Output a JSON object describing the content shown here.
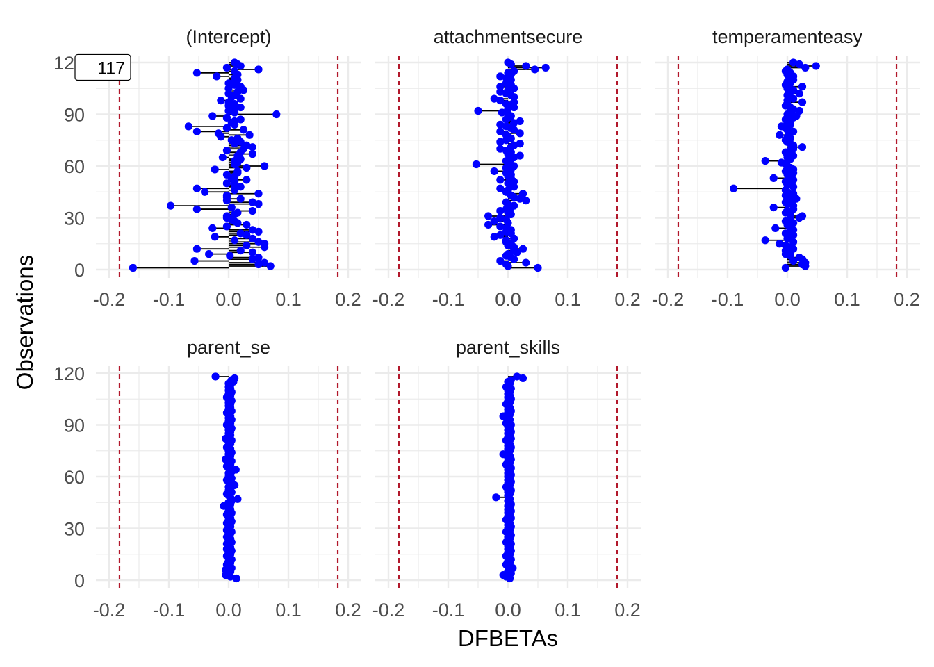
{
  "chart_data": {
    "type": "scatter",
    "xlabel": "DFBETAs",
    "ylabel": "Observations",
    "xlim": [
      -0.2,
      0.2
    ],
    "ylim": [
      0,
      120
    ],
    "x_ticks": [
      -0.2,
      -0.1,
      0.0,
      0.1,
      0.2
    ],
    "x_tick_labels": [
      "-0.2",
      "-0.1",
      "0.0",
      "0.1",
      "0.2"
    ],
    "y_ticks": [
      0,
      30,
      60,
      90,
      120
    ],
    "y_tick_labels": [
      "0",
      "30",
      "60",
      "90",
      "120"
    ],
    "threshold": 0.1826,
    "colors": {
      "point": "#0000ff",
      "segment": "#000000",
      "threshold": "#b2182b",
      "grid": "#ebebeb"
    },
    "callout": {
      "label": "117",
      "panel": "(Intercept)",
      "observation": 117
    },
    "panels": [
      {
        "title": "(Intercept)",
        "values": [
          -0.16,
          0.07,
          0.05,
          0.06,
          -0.057,
          0.04,
          0.05,
          0.002,
          -0.033,
          0.04,
          0.02,
          -0.053,
          0.06,
          0.03,
          0.06,
          0.05,
          0.01,
          0.04,
          -0.023,
          0.03,
          0.02,
          0.05,
          0.04,
          -0.027,
          -0.003,
          0.03,
          0.015,
          0.01,
          0.005,
          -0.003,
          -0.003,
          0.01,
          0.015,
          0.04,
          -0.053,
          0.005,
          -0.097,
          0.05,
          0.04,
          -0.003,
          0.02,
          -0.003,
          -0.003,
          0.05,
          -0.04,
          0.01,
          -0.053,
          0.02,
          0.01,
          -0.003,
          0.01,
          0.03,
          0.005,
          0.01,
          -0.003,
          0.015,
          0.015,
          -0.023,
          0.03,
          0.06,
          0.01,
          0.015,
          0.01,
          0.02,
          -0.01,
          0.015,
          0.04,
          0.02,
          -0.003,
          0.025,
          0.04,
          0.03,
          0.01,
          0.02,
          0.005,
          0.015,
          -0.013,
          0.035,
          -0.017,
          -0.053,
          0.025,
          -0.003,
          -0.067,
          0.01,
          0.005,
          0.01,
          0.02,
          -0.003,
          -0.027,
          0.08,
          0.01,
          0.0,
          0.01,
          0.02,
          0.0,
          0.01,
          0.0,
          -0.013,
          0.02,
          0.005,
          0.01,
          0.0,
          0.015,
          0.025,
          0.0,
          0.02,
          0.01,
          0.0,
          0.01,
          0.015,
          0.01,
          -0.02,
          0.015,
          -0.053,
          0.01,
          0.05,
          -0.003,
          0.02,
          0.015,
          0.01
        ]
      },
      {
        "title": "attachmentsecure",
        "values": [
          0.05,
          0.0,
          -0.003,
          0.03,
          -0.013,
          0.01,
          0.005,
          -0.003,
          0.0,
          0.015,
          0.01,
          0.025,
          0.01,
          0.0,
          0.005,
          -0.003,
          -0.003,
          0.01,
          -0.023,
          -0.013,
          0.005,
          -0.003,
          0.005,
          -0.003,
          -0.013,
          -0.033,
          0.0,
          -0.023,
          -0.003,
          -0.013,
          -0.033,
          0.005,
          0.0,
          -0.013,
          -0.003,
          0.005,
          0.01,
          0.0,
          -0.003,
          0.03,
          0.02,
          0.01,
          0.005,
          0.025,
          -0.003,
          0.0,
          -0.013,
          0.01,
          0.005,
          0.0,
          0.01,
          -0.013,
          0.005,
          0.0,
          0.005,
          -0.003,
          -0.023,
          0.005,
          -0.003,
          0.01,
          -0.053,
          0.0,
          -0.003,
          0.005,
          0.01,
          0.02,
          0.0,
          0.005,
          -0.003,
          -0.013,
          0.005,
          0.01,
          0.02,
          -0.013,
          -0.003,
          0.005,
          0.0,
          -0.003,
          0.02,
          -0.013,
          0.01,
          0.005,
          -0.003,
          -0.013,
          0.01,
          0.02,
          -0.003,
          0.0,
          0.005,
          0.0,
          -0.01,
          -0.05,
          0.0,
          0.01,
          0.005,
          -0.003,
          0.01,
          -0.013,
          -0.023,
          0.01,
          0.005,
          -0.003,
          -0.013,
          0.0,
          0.01,
          -0.013,
          0.005,
          -0.003,
          0.0,
          0.005,
          -0.003,
          -0.013,
          0.005,
          0.0,
          0.01,
          0.045,
          0.063,
          0.03,
          0.005,
          0.0
        ]
      },
      {
        "title": "temperamenteasy",
        "values": [
          -0.003,
          0.03,
          0.025,
          0.03,
          0.01,
          0.025,
          0.02,
          0.005,
          -0.003,
          0.005,
          -0.003,
          0.01,
          0.005,
          -0.003,
          -0.013,
          0.01,
          -0.037,
          0.0,
          0.005,
          0.01,
          -0.003,
          0.005,
          0.01,
          -0.02,
          0.005,
          0.0,
          0.01,
          -0.003,
          0.005,
          0.02,
          0.025,
          0.005,
          -0.003,
          0.0,
          0.01,
          -0.023,
          0.01,
          0.0,
          -0.003,
          0.005,
          0.015,
          0.005,
          -0.003,
          0.01,
          0.0,
          -0.003,
          -0.09,
          0.01,
          0.0,
          0.005,
          -0.003,
          0.01,
          -0.023,
          0.005,
          0.0,
          0.01,
          -0.003,
          0.01,
          0.005,
          0.0,
          -0.003,
          -0.01,
          -0.037,
          0.005,
          0.0,
          0.01,
          0.0,
          -0.003,
          0.005,
          0.01,
          0.025,
          0.01,
          0.005,
          0.0,
          -0.003,
          0.005,
          0.0,
          -0.013,
          0.005,
          0.01,
          0.0,
          -0.003,
          -0.01,
          0.005,
          0.0,
          0.005,
          -0.003,
          0.01,
          0.015,
          0.0,
          0.005,
          0.02,
          0.01,
          0.005,
          -0.003,
          0.0,
          0.025,
          0.0,
          0.01,
          0.005,
          0.0,
          0.02,
          0.005,
          0.01,
          0.0,
          0.025,
          -0.003,
          0.005,
          0.0,
          0.01,
          0.005,
          0.01,
          0.0,
          0.005,
          -0.003,
          0.0,
          0.03,
          0.048,
          0.02,
          0.01
        ]
      },
      {
        "title": "parent_se",
        "values": [
          0.013,
          0.003,
          -0.005,
          0.0,
          0.003,
          -0.005,
          0.005,
          0.0,
          -0.003,
          0.003,
          0.0,
          0.005,
          0.0,
          -0.003,
          0.003,
          0.0,
          0.005,
          -0.003,
          0.003,
          0.0,
          -0.003,
          0.005,
          0.0,
          0.003,
          -0.003,
          0.0,
          0.003,
          0.005,
          -0.003,
          0.0,
          0.003,
          0.0,
          -0.003,
          0.005,
          0.0,
          0.003,
          0.0,
          -0.003,
          0.005,
          0.0,
          0.003,
          0.0,
          -0.008,
          0.003,
          0.0,
          0.005,
          0.015,
          0.003,
          0.0,
          -0.003,
          0.005,
          0.0,
          0.003,
          0.0,
          0.01,
          0.003,
          0.0,
          -0.003,
          0.005,
          0.0,
          0.003,
          0.0,
          0.005,
          0.012,
          0.0,
          -0.003,
          0.003,
          0.0,
          0.005,
          -0.005,
          0.0,
          0.003,
          0.0,
          0.005,
          0.0,
          0.003,
          -0.003,
          0.0,
          0.003,
          0.0,
          0.005,
          -0.005,
          0.0,
          0.003,
          0.0,
          0.003,
          0.0,
          0.005,
          0.0,
          -0.003,
          0.003,
          0.0,
          0.005,
          0.0,
          0.003,
          0.0,
          -0.003,
          0.005,
          0.0,
          0.003,
          0.0,
          0.003,
          0.0,
          0.005,
          0.0,
          -0.003,
          0.003,
          0.0,
          0.005,
          0.0,
          0.003,
          0.0,
          0.003,
          0.0,
          0.008,
          0.005,
          0.01,
          -0.022
        ]
      },
      {
        "title": "parent_skills",
        "values": [
          0.003,
          -0.003,
          -0.008,
          0.005,
          0.0,
          0.003,
          0.008,
          0.0,
          -0.003,
          0.003,
          0.0,
          0.005,
          0.0,
          -0.003,
          0.003,
          0.0,
          0.005,
          0.0,
          0.003,
          0.0,
          0.005,
          -0.003,
          0.0,
          0.003,
          0.0,
          0.005,
          0.0,
          -0.003,
          0.003,
          0.0,
          0.005,
          0.0,
          0.003,
          0.0,
          -0.003,
          0.005,
          0.0,
          0.003,
          0.0,
          0.005,
          0.0,
          0.003,
          0.0,
          0.005,
          0.003,
          0.0,
          0.003,
          -0.02,
          0.0,
          0.003,
          0.0,
          0.005,
          0.0,
          -0.003,
          0.003,
          0.0,
          0.005,
          0.0,
          0.003,
          0.0,
          0.005,
          0.0,
          0.003,
          0.0,
          0.005,
          0.0,
          -0.003,
          0.003,
          0.0,
          0.005,
          0.0,
          0.003,
          -0.008,
          0.0,
          0.003,
          0.0,
          0.005,
          0.0,
          0.003,
          0.0,
          -0.003,
          0.005,
          0.0,
          0.003,
          0.0,
          0.005,
          0.0,
          0.003,
          0.0,
          0.005,
          -0.003,
          0.0,
          0.003,
          0.0,
          -0.008,
          0.003,
          0.0,
          0.005,
          0.0,
          0.003,
          0.0,
          -0.003,
          0.003,
          0.0,
          0.005,
          0.0,
          0.003,
          0.0,
          0.003,
          0.0,
          0.005,
          -0.003,
          0.0,
          0.003,
          0.0,
          0.005,
          0.025,
          0.015
        ]
      }
    ]
  }
}
